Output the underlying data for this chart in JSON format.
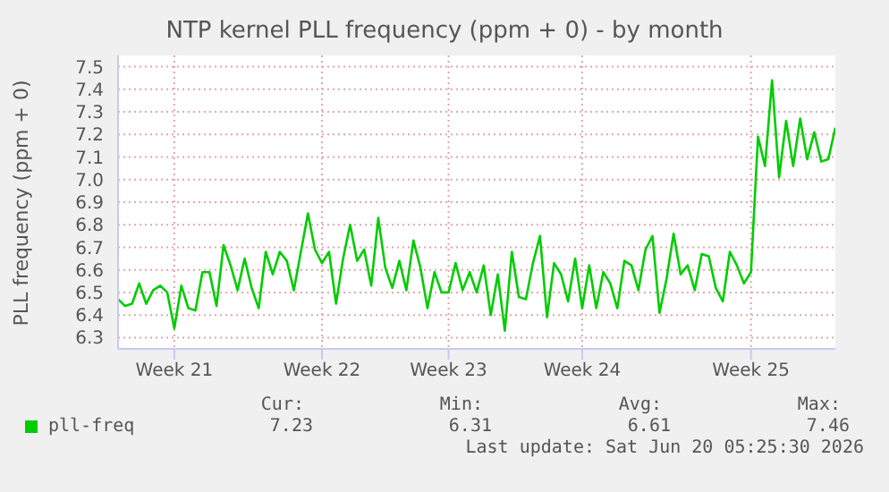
{
  "chart_data": {
    "type": "line",
    "title": "NTP kernel PLL frequency (ppm + 0) - by month",
    "ylabel": "PLL frequency (ppm + 0)",
    "categories": [
      null,
      null,
      null,
      null,
      null,
      null,
      null,
      null,
      "Week 21",
      null,
      null,
      null,
      null,
      null,
      null,
      null,
      null,
      null,
      null,
      null,
      null,
      null,
      null,
      null,
      null,
      null,
      null,
      null,
      null,
      "Week 22",
      null,
      null,
      null,
      null,
      null,
      null,
      null,
      null,
      null,
      null,
      null,
      null,
      null,
      null,
      null,
      null,
      null,
      "Week 23",
      null,
      null,
      null,
      null,
      null,
      null,
      null,
      null,
      null,
      null,
      null,
      null,
      null,
      null,
      null,
      null,
      null,
      null,
      "Week 24",
      null,
      null,
      null,
      null,
      null,
      null,
      null,
      null,
      null,
      null,
      null,
      null,
      null,
      null,
      null,
      null,
      null,
      null,
      null,
      null,
      null,
      null,
      null,
      "Week 25",
      null,
      null,
      null,
      null,
      null,
      null,
      null,
      null,
      null,
      null,
      null,
      null
    ],
    "ylim": [
      6.25,
      7.55
    ],
    "yticks": [
      6.3,
      6.4,
      6.5,
      6.6,
      6.7,
      6.8,
      6.9,
      {
        "value": 7,
        "label": "7.0"
      },
      7.1,
      7.2,
      7.3,
      7.4,
      7.5
    ],
    "grid": true,
    "legend": "bottom",
    "series": [
      {
        "name": "pll-freq",
        "color": "#00cc00",
        "values": [
          6.47,
          6.44,
          6.45,
          6.54,
          6.45,
          6.51,
          6.53,
          6.5,
          6.34,
          6.53,
          6.43,
          6.42,
          6.59,
          6.59,
          6.44,
          6.71,
          6.62,
          6.51,
          6.65,
          6.52,
          6.43,
          6.68,
          6.58,
          6.68,
          6.64,
          6.51,
          6.68,
          6.85,
          6.69,
          6.63,
          6.68,
          6.45,
          6.65,
          6.8,
          6.64,
          6.69,
          6.53,
          6.83,
          6.61,
          6.52,
          6.64,
          6.51,
          6.73,
          6.61,
          6.43,
          6.59,
          6.5,
          6.5,
          6.63,
          6.51,
          6.59,
          6.5,
          6.62,
          6.4,
          6.58,
          6.33,
          6.68,
          6.48,
          6.47,
          6.63,
          6.75,
          6.39,
          6.63,
          6.58,
          6.46,
          6.65,
          6.43,
          6.62,
          6.43,
          6.59,
          6.54,
          6.43,
          6.64,
          6.62,
          6.51,
          6.69,
          6.75,
          6.41,
          6.56,
          6.76,
          6.58,
          6.62,
          6.51,
          6.67,
          6.66,
          6.52,
          6.46,
          6.68,
          6.62,
          6.54,
          6.59,
          7.19,
          7.06,
          7.44,
          7.01,
          7.26,
          7.06,
          7.27,
          7.09,
          7.21,
          7.08,
          7.09,
          7.23
        ]
      }
    ],
    "annotations": [
      "Cur:",
      "Min:",
      "Avg:",
      "Max:",
      "7.23",
      "6.31",
      "6.61",
      "7.46",
      "Last update: Sat Jun 20 05:25:30 2026"
    ]
  }
}
